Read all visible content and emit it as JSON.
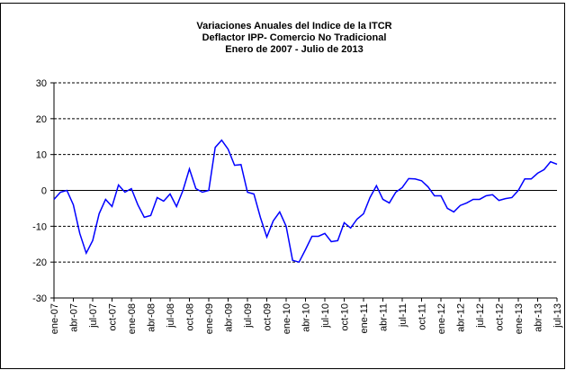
{
  "chart_data": {
    "type": "line",
    "title": [
      "Variaciones Anuales del Indice de la ITCR",
      "Deflactor IPP- Comercio No Tradicional",
      "Enero de 2007 - Julio de 2013"
    ],
    "categories": [
      "ene-07",
      null,
      null,
      "abr-07",
      null,
      null,
      "jul-07",
      null,
      null,
      "oct-07",
      null,
      null,
      "ene-08",
      null,
      null,
      "abr-08",
      null,
      null,
      "jul-08",
      null,
      null,
      "oct-08",
      null,
      null,
      "ene-09",
      null,
      null,
      "abr-09",
      null,
      null,
      "jul-09",
      null,
      null,
      "oct-09",
      null,
      null,
      "ene-10",
      null,
      null,
      "abr-10",
      null,
      null,
      "jul-10",
      null,
      null,
      "oct-10",
      null,
      null,
      "ene-11",
      null,
      null,
      "abr-11",
      null,
      null,
      "jul-11",
      null,
      null,
      "oct-11",
      null,
      null,
      "ene-12",
      null,
      null,
      "abr-12",
      null,
      null,
      "jul-12",
      null,
      null,
      "oct-12",
      null,
      null,
      "ene-13",
      null,
      null,
      "abr-13",
      null,
      null,
      "jul-13"
    ],
    "series": [
      {
        "color": "#0000ff",
        "values": [
          -2.5,
          -0.5,
          0,
          -4,
          -12,
          -17.5,
          -14,
          -6.5,
          -2.5,
          -4.5,
          1.5,
          -0.5,
          0.5,
          -4,
          -7.5,
          -7,
          -2,
          -3,
          -1,
          -4.5,
          0,
          6,
          0.5,
          -0.5,
          0,
          12,
          14,
          11.5,
          7,
          7.2,
          -0.5,
          -1,
          -7.5,
          -13,
          -8.5,
          -6,
          -10,
          -19.5,
          -20,
          -16.5,
          -12.8,
          -12.8,
          -12,
          -14.3,
          -14,
          -9,
          -10.5,
          -8,
          -6.5,
          -2,
          1.3,
          -2.5,
          -3.5,
          -0.5,
          0.8,
          3.3,
          3.2,
          2.7,
          1,
          -1.5,
          -1.5,
          -5,
          -6,
          -4.2,
          -3.5,
          -2.5,
          -2.5,
          -1.5,
          -1.2,
          -2.8,
          -2.3,
          -2,
          0,
          3.2,
          3.2,
          4.8,
          5.8,
          8,
          7.3
        ]
      }
    ],
    "ylim": [
      -30,
      30
    ],
    "yticks": [
      -30,
      -20,
      -10,
      0,
      10,
      20,
      30
    ],
    "grid": true
  }
}
